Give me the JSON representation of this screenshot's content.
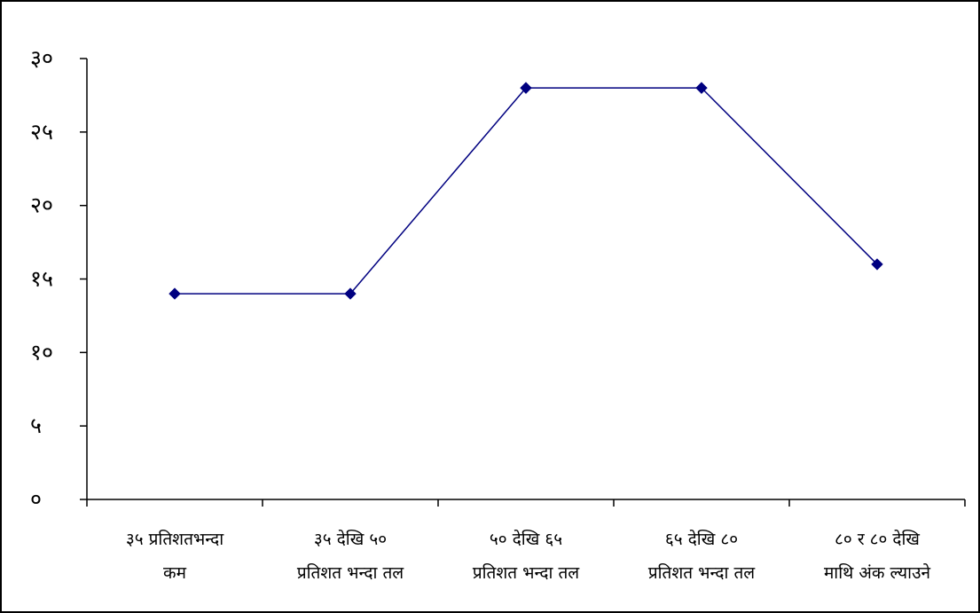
{
  "chart_data": {
    "type": "line",
    "title": "",
    "xlabel": "",
    "ylabel": "",
    "categories": [
      [
        "३५ प्रतिशतभन्दा",
        "कम"
      ],
      [
        "३५ देखि ५०",
        "प्रतिशत भन्दा तल"
      ],
      [
        "५० देखि ६५",
        "प्रतिशत भन्दा तल"
      ],
      [
        "६५ देखि ८०",
        "प्रतिशत भन्दा तल"
      ],
      [
        "८० र ८०  देखि",
        "माथि अंक ल्याउने"
      ]
    ],
    "series": [
      {
        "values": [
          14,
          14,
          28,
          28,
          16
        ]
      }
    ],
    "ylim": [
      0,
      30
    ],
    "yticks": [
      0,
      5,
      10,
      15,
      20,
      25,
      30
    ],
    "ytick_labels": [
      "०",
      "५",
      "१०",
      "१५",
      "२०",
      "२५",
      "३०"
    ],
    "grid": false,
    "legend": "none",
    "line_color": "#000080",
    "marker": "diamond"
  }
}
